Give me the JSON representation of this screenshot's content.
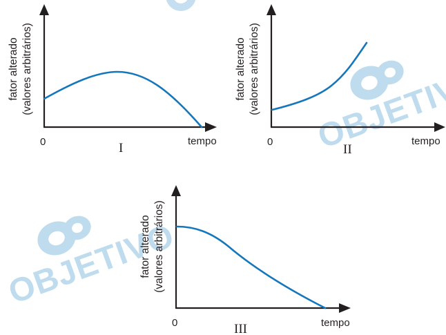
{
  "colors": {
    "curve": "#1577bb",
    "axis": "#231f20",
    "watermark": "#bfdcef"
  },
  "watermark": {
    "text": "OBJETIVO",
    "icon": "objetivo-logo-icon"
  },
  "chart_data": [
    {
      "type": "line",
      "panel": "I",
      "ylabel_line1": "fator alterado",
      "ylabel_line2": "(valores arbitrários)",
      "xlabel": "tempo",
      "x_origin_label": "0",
      "shape": "rises from a positive starting value to a maximum near the middle of the interval, then falls to zero at the end",
      "x": [
        0,
        0.25,
        0.45,
        0.7,
        1.0
      ],
      "y": [
        0.5,
        0.8,
        0.98,
        0.8,
        0.0
      ],
      "xlim": [
        0,
        1
      ],
      "ylim": [
        0,
        1
      ]
    },
    {
      "type": "line",
      "panel": "II",
      "ylabel_line1": "fator alterado",
      "ylabel_line2": "(valores arbitrários)",
      "xlabel": "tempo",
      "x_origin_label": "0",
      "shape": "increases continuously from a low starting value, curving upward",
      "x": [
        0,
        0.3,
        0.6,
        1.0
      ],
      "y": [
        0.2,
        0.35,
        0.62,
        1.0
      ],
      "xlim": [
        0,
        1
      ],
      "ylim": [
        0,
        1
      ]
    },
    {
      "type": "line",
      "panel": "III",
      "ylabel_line1": "fator alterado",
      "ylabel_line2": "(valores arbitrários)",
      "xlabel": "tempo",
      "x_origin_label": "0",
      "shape": "starts at its maximum and decreases steadily to zero",
      "x": [
        0,
        0.3,
        0.6,
        1.0
      ],
      "y": [
        1.0,
        0.85,
        0.5,
        0.0
      ],
      "xlim": [
        0,
        1
      ],
      "ylim": [
        0,
        1
      ]
    }
  ]
}
